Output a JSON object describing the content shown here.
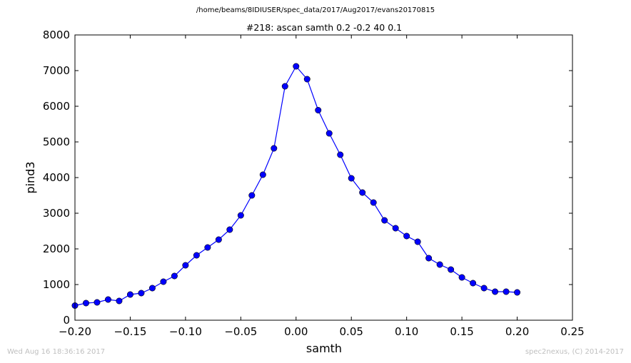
{
  "header": {
    "file_path": "/home/beams/8IDIUSER/spec_data/2017/Aug2017/evans20170815"
  },
  "footer": {
    "timestamp": "Wed Aug 16 18:36:16 2017",
    "credit": "spec2nexus, (C) 2014-2017"
  },
  "chart_data": {
    "type": "line",
    "title": "#218: ascan  samth 0.2 -0.2  40 0.1",
    "xlabel": "samth",
    "ylabel": "pind3",
    "xlim": [
      -0.2,
      0.25
    ],
    "ylim": [
      0,
      8000
    ],
    "xticks": [
      "−0.20",
      "−0.15",
      "−0.10",
      "−0.05",
      "0.00",
      "0.05",
      "0.10",
      "0.15",
      "0.20",
      "0.25"
    ],
    "xtick_values": [
      -0.2,
      -0.15,
      -0.1,
      -0.05,
      0,
      0.05,
      0.1,
      0.15,
      0.2,
      0.25
    ],
    "yticks": [
      "0",
      "1000",
      "2000",
      "3000",
      "4000",
      "5000",
      "6000",
      "7000",
      "8000"
    ],
    "ytick_values": [
      0,
      1000,
      2000,
      3000,
      4000,
      5000,
      6000,
      7000,
      8000
    ],
    "grid": false,
    "series": [
      {
        "color": "#0000ff",
        "marker": "circle",
        "x": [
          -0.2,
          -0.19,
          -0.18,
          -0.17,
          -0.16,
          -0.15,
          -0.14,
          -0.13,
          -0.12,
          -0.11,
          -0.1,
          -0.09,
          -0.08,
          -0.07,
          -0.06,
          -0.05,
          -0.04,
          -0.03,
          -0.02,
          -0.01,
          0.0,
          0.01,
          0.02,
          0.03,
          0.04,
          0.05,
          0.06,
          0.07,
          0.08,
          0.09,
          0.1,
          0.11,
          0.12,
          0.13,
          0.14,
          0.15,
          0.16,
          0.17,
          0.18,
          0.19,
          0.2
        ],
        "y": [
          410,
          480,
          500,
          580,
          540,
          720,
          760,
          900,
          1080,
          1240,
          1540,
          1820,
          2040,
          2260,
          2540,
          2940,
          3500,
          4080,
          4820,
          6560,
          7120,
          6760,
          5890,
          5240,
          4640,
          3980,
          3580,
          3300,
          2800,
          2580,
          2360,
          2200,
          1740,
          1560,
          1420,
          1200,
          1040,
          900,
          800,
          800,
          780
        ]
      }
    ]
  }
}
